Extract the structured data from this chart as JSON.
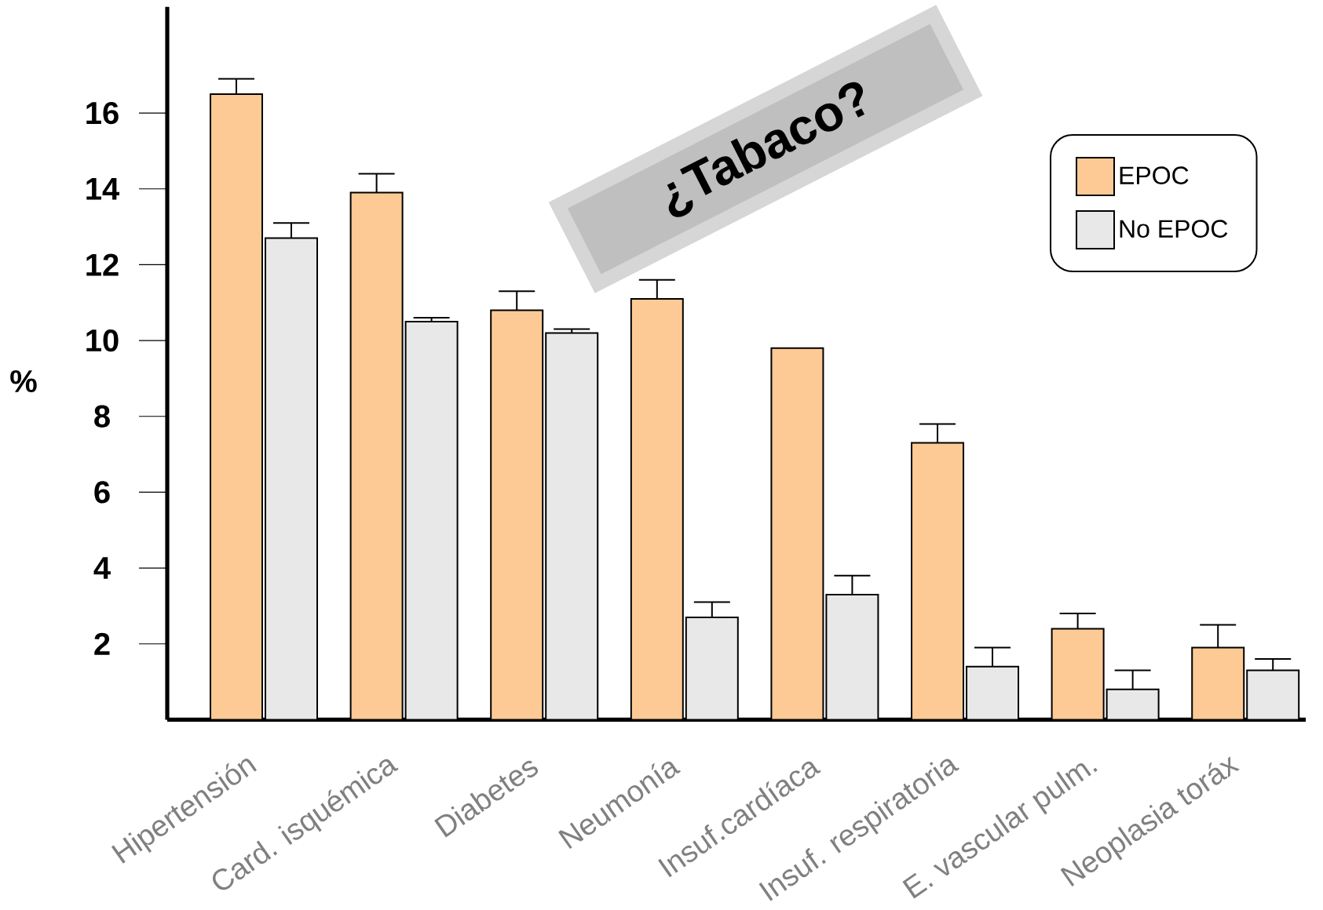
{
  "chart_data": {
    "type": "bar",
    "ylabel": "%",
    "categories": [
      "Hipertensión",
      "Card. isquémica",
      "Diabetes",
      "Neumonía",
      "Insuf.cardíaca",
      "Insuf. respiratoria",
      "E. vascular pulm.",
      "Neoplasia toráx"
    ],
    "series": [
      {
        "name": "EPOC",
        "color": "#fdca96",
        "values": [
          16.5,
          13.9,
          10.8,
          11.1,
          9.8,
          7.3,
          2.4,
          1.9
        ],
        "errors": [
          [
            16.5,
            16.9
          ],
          [
            13.9,
            14.4
          ],
          [
            10.8,
            11.3
          ],
          [
            11.1,
            11.6
          ],
          null,
          [
            7.3,
            7.8
          ],
          [
            2.4,
            2.8
          ],
          [
            1.9,
            2.5
          ]
        ]
      },
      {
        "name": "No EPOC",
        "color": "#e8e8e8",
        "values": [
          12.7,
          10.5,
          10.2,
          2.7,
          3.3,
          1.4,
          0.8,
          1.3
        ],
        "errors": [
          [
            12.7,
            13.1
          ],
          [
            10.5,
            10.6
          ],
          [
            10.2,
            10.3
          ],
          [
            2.7,
            3.1
          ],
          [
            3.3,
            3.8
          ],
          [
            1.4,
            1.9
          ],
          [
            0.8,
            1.3
          ],
          [
            1.3,
            1.6
          ]
        ]
      }
    ],
    "ylim": [
      0,
      18.8
    ],
    "yticks": [
      2,
      4,
      6,
      8,
      10,
      12,
      14,
      16
    ],
    "legend": "top right",
    "annotations": [
      "¿Tabaco?"
    ]
  }
}
